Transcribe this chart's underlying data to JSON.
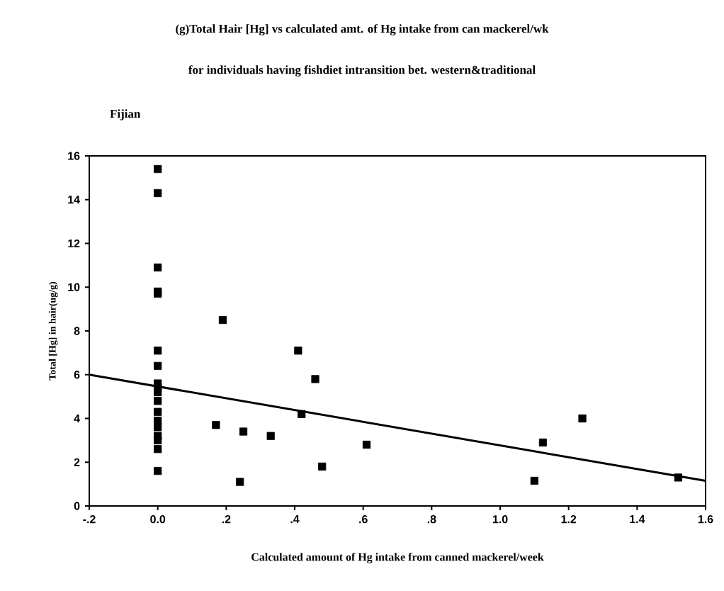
{
  "chart_data": {
    "type": "scatter",
    "title": "(g)Total Hair [Hg] vs calculated amt. of Hg intake from can mackerel/wk",
    "subtitle": "for individuals having fishdiet intransition bet. western&traditional",
    "xlabel": "Calculated amount of Hg intake from canned mackerel/week",
    "ylabel": "Total [Hg] in hair(ug/g)",
    "annotations": [
      "Fijian"
    ],
    "series": [
      {
        "marker": "square",
        "color": "#000000",
        "x": [
          0,
          0,
          0,
          0,
          0,
          0,
          0,
          0,
          0,
          0,
          0,
          0,
          0,
          0,
          0,
          0,
          0,
          0,
          0.19,
          0.17,
          0.24,
          0.25,
          0.33,
          0.41,
          0.46,
          0.42,
          0.48,
          0.61,
          1.125,
          1.24,
          1.1,
          1.52
        ],
        "values": [
          15.4,
          14.3,
          10.9,
          9.8,
          9.7,
          7.1,
          6.4,
          5.6,
          5.4,
          5.2,
          4.8,
          4.3,
          3.9,
          3.6,
          3.2,
          3.0,
          2.6,
          1.6,
          8.5,
          3.7,
          1.1,
          3.4,
          3.2,
          7.1,
          5.8,
          4.2,
          1.8,
          2.8,
          2.9,
          4.0,
          1.15,
          1.3
        ]
      },
      {
        "type": "line",
        "color": "#000000",
        "x": [
          -0.2,
          1.6
        ],
        "values": [
          6.0,
          1.15
        ]
      }
    ],
    "xlim": [
      -0.2,
      1.6
    ],
    "xticks": [
      {
        "value": -0.2,
        "label": "-.2"
      },
      {
        "value": 0,
        "label": "0.0"
      },
      {
        "value": 0.2,
        "label": ".2"
      },
      {
        "value": 0.4,
        "label": ".4"
      },
      {
        "value": 0.6,
        "label": ".6"
      },
      {
        "value": 0.8,
        "label": ".8"
      },
      {
        "value": 1.0,
        "label": "1.0"
      },
      {
        "value": 1.2,
        "label": "1.2"
      },
      {
        "value": 1.4,
        "label": "1.4"
      },
      {
        "value": 1.6,
        "label": "1.6"
      }
    ],
    "ylim": [
      0,
      16
    ],
    "yticks": [
      0,
      2,
      4,
      6,
      8,
      10,
      12,
      14,
      16
    ]
  }
}
